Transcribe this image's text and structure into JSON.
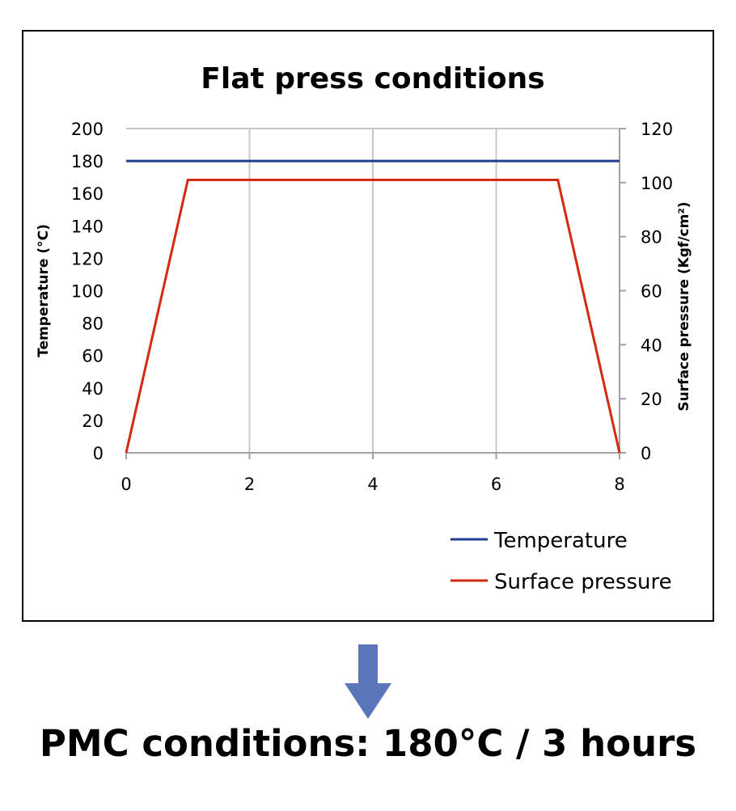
{
  "chart_data": {
    "type": "line",
    "title": "Flat press conditions",
    "xlabel": "",
    "ylabel": "Temperature (°C)",
    "y2label": "Surface pressure (Kgf/cm²)",
    "xlim": [
      0,
      8
    ],
    "ylim": [
      0,
      200
    ],
    "y2lim": [
      0,
      120
    ],
    "x_ticks": [
      0,
      2,
      4,
      6,
      8
    ],
    "y_ticks": [
      0,
      20,
      40,
      60,
      80,
      100,
      120,
      140,
      160,
      180,
      200
    ],
    "y2_ticks": [
      0,
      20,
      40,
      60,
      80,
      100,
      120
    ],
    "grid": true,
    "legend_position": "bottom-right",
    "series": [
      {
        "name": "Temperature",
        "axis": "left",
        "color": "#1f3f96",
        "points": [
          [
            0,
            180
          ],
          [
            8,
            180
          ]
        ]
      },
      {
        "name": "Surface pressure",
        "axis": "right",
        "color": "#d42a0e",
        "points": [
          [
            0,
            0
          ],
          [
            1,
            101
          ],
          [
            7,
            101
          ],
          [
            8,
            0
          ]
        ]
      }
    ]
  },
  "footer": {
    "text": "PMC conditions: 180°C / 3 hours",
    "arrow_icon": "arrow-down-icon",
    "arrow_color": "#5a75ba"
  }
}
